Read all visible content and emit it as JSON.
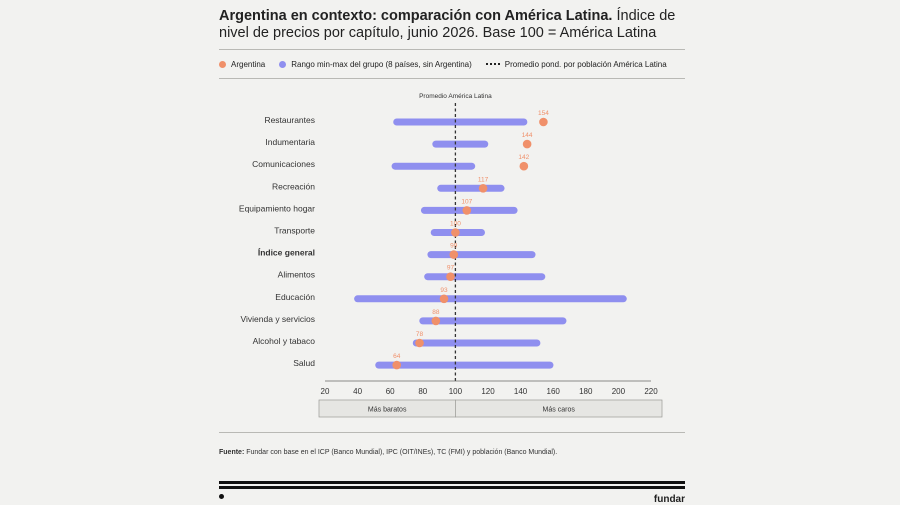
{
  "header": {
    "title_bold": "Argentina en contexto: comparación con América Latina.",
    "title_rest": " Índice de nivel de precios por capítulo, junio 2026. Base 100 = América Latina"
  },
  "legend": {
    "argentina": "Argentina",
    "range": "Rango min-max del grupo (8 países, sin Argentina)",
    "average": "Promedio pond. por población América Latina"
  },
  "colors": {
    "argentina": "#f0906a",
    "range": "#8f8fef",
    "average_line": "#333333"
  },
  "chart_data": {
    "type": "dot-range",
    "reference_label": "Promedio América Latina",
    "reference_value": 100,
    "xlim": [
      20,
      220
    ],
    "xticks": [
      20,
      40,
      60,
      80,
      100,
      120,
      140,
      160,
      180,
      200,
      220
    ],
    "categories": [
      {
        "name": "Restaurantes",
        "min": 64,
        "max": 142,
        "argentina": 154,
        "bold": false
      },
      {
        "name": "Indumentaria",
        "min": 88,
        "max": 118,
        "argentina": 144,
        "bold": false
      },
      {
        "name": "Comunicaciones",
        "min": 63,
        "max": 110,
        "argentina": 142,
        "bold": false
      },
      {
        "name": "Recreación",
        "min": 91,
        "max": 128,
        "argentina": 117,
        "bold": false
      },
      {
        "name": "Equipamiento hogar",
        "min": 81,
        "max": 136,
        "argentina": 107,
        "bold": false
      },
      {
        "name": "Transporte",
        "min": 87,
        "max": 116,
        "argentina": 100,
        "bold": false
      },
      {
        "name": "Índice general",
        "min": 85,
        "max": 147,
        "argentina": 99,
        "bold": true
      },
      {
        "name": "Alimentos",
        "min": 83,
        "max": 153,
        "argentina": 97,
        "bold": false
      },
      {
        "name": "Educación",
        "min": 40,
        "max": 203,
        "argentina": 93,
        "bold": false
      },
      {
        "name": "Vivienda y servicios",
        "min": 80,
        "max": 166,
        "argentina": 88,
        "bold": false
      },
      {
        "name": "Alcohol y tabaco",
        "min": 76,
        "max": 150,
        "argentina": 78,
        "bold": false
      },
      {
        "name": "Salud",
        "min": 53,
        "max": 158,
        "argentina": 64,
        "bold": false
      }
    ],
    "bands": {
      "cheaper": "Más baratos",
      "pricier": "Más caros"
    }
  },
  "footer": {
    "source_bold": "Fuente:",
    "source_text": " Fundar con base en el ICP (Banco Mundial), IPC (OIT/INEs), TC (FMI) y población (Banco Mundial).",
    "brand": "fundar"
  }
}
